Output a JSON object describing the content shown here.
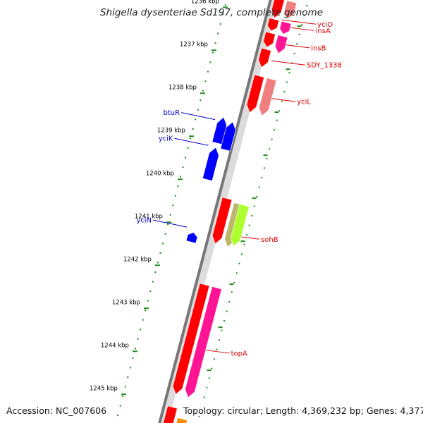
{
  "title": "Shigella dysenteriae Sd197, complete genome",
  "footer": {
    "accession": "Accession: NC_007606",
    "summary": "Topology: circular; Length: 4,369,232 bp; Genes: 4,377"
  },
  "chart_data": {
    "type": "genome-map",
    "topology": "circular",
    "length_bp": 4369232,
    "gene_count": 4377,
    "visible_range_kbp": [
      1235.5,
      1245.5
    ],
    "ticks_kbp": [
      {
        "kbp": 1236,
        "label": "1236 kbp"
      },
      {
        "kbp": 1237,
        "label": "1237 kbp"
      },
      {
        "kbp": 1238,
        "label": "1238 kbp"
      },
      {
        "kbp": 1239,
        "label": "1239 kbp"
      },
      {
        "kbp": 1240,
        "label": "1240 kbp"
      },
      {
        "kbp": 1241,
        "label": "1241 kbp"
      },
      {
        "kbp": 1242,
        "label": "1242 kbp"
      },
      {
        "kbp": 1243,
        "label": "1243 kbp"
      },
      {
        "kbp": 1244,
        "label": "1244 kbp"
      },
      {
        "kbp": 1245,
        "label": "1245 kbp"
      }
    ],
    "genes": [
      {
        "name": "yciO",
        "strand": "forward",
        "start_kbp": 1235.5,
        "end_kbp": 1235.95,
        "color": "#ff0000",
        "label_kbp": 1235.95,
        "labeled": true
      },
      {
        "name": "yciO-2",
        "strand": "forward",
        "start_kbp": 1235.5,
        "end_kbp": 1235.9,
        "color": "#f08080",
        "track": "outer"
      },
      {
        "name": "insA",
        "strand": "forward",
        "start_kbp": 1235.98,
        "end_kbp": 1236.25,
        "color": "#ff0000",
        "label_kbp": 1236.1,
        "labeled": true
      },
      {
        "name": "insA-2",
        "strand": "forward",
        "start_kbp": 1235.98,
        "end_kbp": 1236.25,
        "color": "#ff1493",
        "track": "outer"
      },
      {
        "name": "insB",
        "strand": "forward",
        "start_kbp": 1236.3,
        "end_kbp": 1236.63,
        "color": "#ff0000",
        "label_kbp": 1236.5,
        "labeled": true
      },
      {
        "name": "insB-2",
        "strand": "forward",
        "start_kbp": 1236.3,
        "end_kbp": 1236.7,
        "color": "#ff1493",
        "track": "outer"
      },
      {
        "name": "SDY_1338",
        "strand": "forward",
        "start_kbp": 1236.68,
        "end_kbp": 1237.1,
        "color": "#ff0000",
        "label_kbp": 1236.9,
        "labeled": true
      },
      {
        "name": "yciL",
        "strand": "forward",
        "start_kbp": 1237.3,
        "end_kbp": 1238.15,
        "color": "#ff0000",
        "label_kbp": 1237.75,
        "labeled": true
      },
      {
        "name": "yciL-2",
        "strand": "forward",
        "start_kbp": 1237.3,
        "end_kbp": 1238.15,
        "color": "#f08080",
        "track": "outer"
      },
      {
        "name": "btuR",
        "strand": "reverse",
        "start_kbp": 1238.4,
        "end_kbp": 1239.0,
        "color": "#0000ff",
        "label_kbp": 1238.5,
        "labeled": true
      },
      {
        "name": "btuR-2",
        "strand": "reverse",
        "start_kbp": 1238.45,
        "end_kbp": 1239.1,
        "color": "#0000ff",
        "track": "inner2"
      },
      {
        "name": "yciK",
        "strand": "reverse",
        "start_kbp": 1239.1,
        "end_kbp": 1239.85,
        "color": "#0000ff",
        "label_kbp": 1239.1,
        "labeled": true
      },
      {
        "name": "sohB",
        "strand": "forward",
        "start_kbp": 1240.15,
        "end_kbp": 1241.2,
        "color": "#ff0000",
        "label_kbp": 1240.95,
        "labeled": true
      },
      {
        "name": "sohB-2",
        "strand": "forward",
        "start_kbp": 1240.2,
        "end_kbp": 1241.2,
        "color": "#bdb76b",
        "track": "outer"
      },
      {
        "name": "sohB-3",
        "strand": "forward",
        "start_kbp": 1240.2,
        "end_kbp": 1241.15,
        "color": "#adff2f",
        "track": "outer2"
      },
      {
        "name": "yciN",
        "strand": "reverse",
        "start_kbp": 1241.08,
        "end_kbp": 1241.3,
        "color": "#0000ff",
        "label_kbp": 1241.0,
        "labeled": true
      },
      {
        "name": "topA",
        "strand": "forward",
        "start_kbp": 1242.15,
        "end_kbp": 1244.7,
        "color": "#ff0000",
        "label_kbp": 1243.6,
        "labeled": true
      },
      {
        "name": "topA-2",
        "strand": "forward",
        "start_kbp": 1242.15,
        "end_kbp": 1244.7,
        "color": "#ff1493",
        "track": "outer"
      },
      {
        "name": "next",
        "strand": "forward",
        "start_kbp": 1245.0,
        "end_kbp": 1245.6,
        "color": "#ff0000"
      },
      {
        "name": "next-2",
        "strand": "forward",
        "start_kbp": 1245.2,
        "end_kbp": 1245.6,
        "color": "#ff8c00",
        "track": "outer"
      }
    ]
  }
}
